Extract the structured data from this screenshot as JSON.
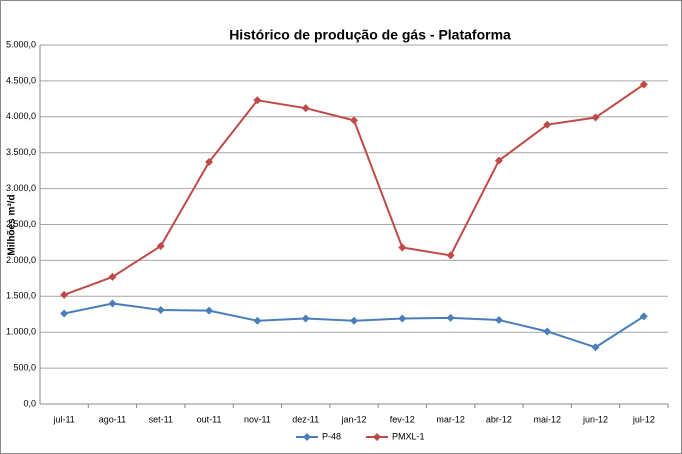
{
  "chart_data": {
    "type": "line",
    "title": "Histórico de produção de gás - Plataforma",
    "y_label": "Milhões m³/d",
    "categories": [
      "jul-11",
      "ago-11",
      "set-11",
      "out-11",
      "nov-11",
      "dez-11",
      "jan-12",
      "fev-12",
      "mar-12",
      "abr-12",
      "mai-12",
      "jun-12",
      "jul-12"
    ],
    "series": [
      {
        "name": "P-48",
        "color": "#4a7ebb",
        "values": [
          1260,
          1400,
          1310,
          1300,
          1160,
          1190,
          1160,
          1190,
          1200,
          1170,
          1010,
          790,
          1220
        ]
      },
      {
        "name": "PMXL-1",
        "color": "#be4b48",
        "values": [
          1520,
          1770,
          2200,
          3370,
          4230,
          4120,
          3950,
          2180,
          2070,
          3390,
          3890,
          3990,
          4450
        ]
      }
    ],
    "ylim": [
      0,
      5000
    ],
    "yticks": [
      {
        "value": 0,
        "label": "0,0"
      },
      {
        "value": 500,
        "label": "500,0"
      },
      {
        "value": 1000,
        "label": "1.000,0"
      },
      {
        "value": 1500,
        "label": "1.500,0"
      },
      {
        "value": 2000,
        "label": "2.000,0"
      },
      {
        "value": 2500,
        "label": "2.500,0"
      },
      {
        "value": 3000,
        "label": "3.000,0"
      },
      {
        "value": 3500,
        "label": "3.500,0"
      },
      {
        "value": 4000,
        "label": "4.000,0"
      },
      {
        "value": 4500,
        "label": "4.500,0"
      },
      {
        "value": 5000,
        "label": "5.000,0"
      }
    ],
    "grid": true,
    "legend": "bottom"
  }
}
